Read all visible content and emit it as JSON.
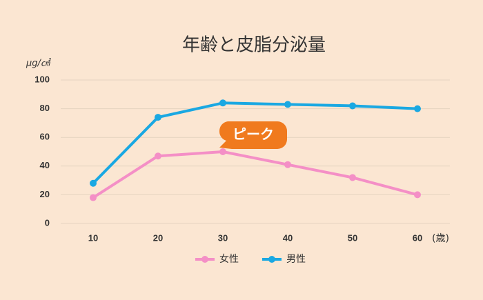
{
  "chart_data": {
    "type": "line",
    "title": "年齢と皮脂分泌量",
    "y_label": "μg/㎠",
    "x_label": "(歳)",
    "annotation": "ピーク",
    "x": [
      10,
      20,
      30,
      40,
      50,
      60
    ],
    "xlim": [
      5,
      65
    ],
    "xticks": [
      10,
      20,
      30,
      40,
      50,
      60
    ],
    "ylim": [
      0,
      100
    ],
    "yticks": [
      0,
      20,
      40,
      60,
      80,
      100
    ],
    "grid": true,
    "series": [
      {
        "name": "女性",
        "color": "#f48fc6",
        "values": [
          18,
          47,
          50,
          41,
          32,
          20
        ]
      },
      {
        "name": "男性",
        "color": "#1aa8e2",
        "values": [
          28,
          74,
          84,
          83,
          82,
          80
        ]
      }
    ]
  }
}
